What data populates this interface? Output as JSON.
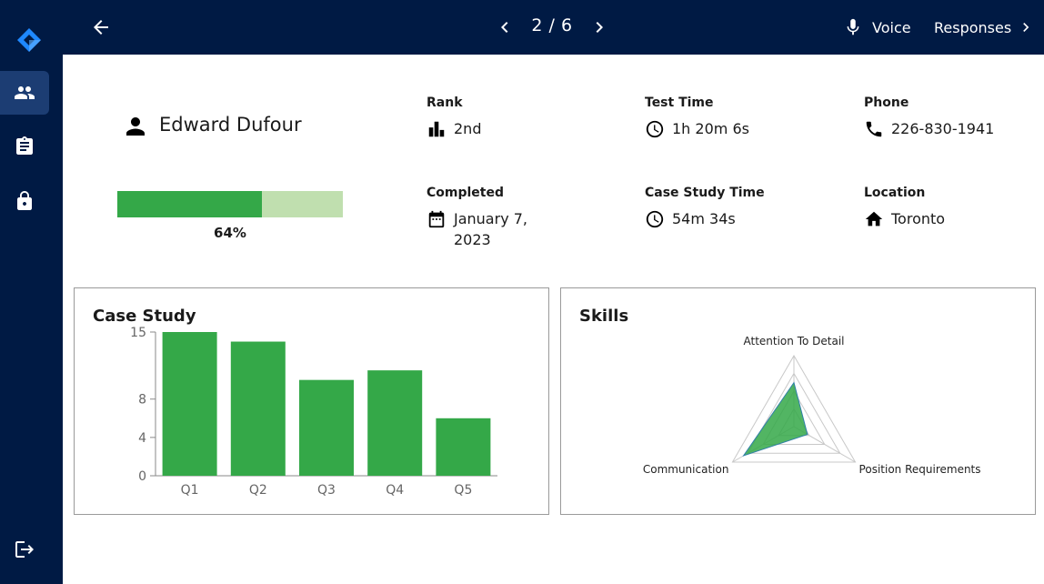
{
  "topbar": {
    "page_indicator": "2 / 6",
    "voice_label": "Voice",
    "responses_label": "Responses"
  },
  "profile": {
    "name": "Edward Dufour",
    "score_fraction": 0.64,
    "score_label": "64%"
  },
  "info": {
    "rank": {
      "label": "Rank",
      "value": "2nd",
      "icon": "bar-chart-icon"
    },
    "test_time": {
      "label": "Test Time",
      "value": "1h 20m 6s",
      "icon": "clock-icon"
    },
    "phone": {
      "label": "Phone",
      "value": "226-830-1941",
      "icon": "phone-icon"
    },
    "completed": {
      "label": "Completed",
      "value": "January 7, 2023",
      "icon": "calendar-icon"
    },
    "case_study_time": {
      "label": "Case Study Time",
      "value": "54m 34s",
      "icon": "clock-icon"
    },
    "location": {
      "label": "Location",
      "value": "Toronto",
      "icon": "home-icon"
    }
  },
  "colors": {
    "nav": "#001a44",
    "nav_active": "#1c3d73",
    "accent_green": "#34a848",
    "progress_track": "#c0dfaf"
  },
  "sidebar": {
    "items": [
      "people-icon",
      "clipboard-icon",
      "lock-icon"
    ],
    "bottom": "logout-icon"
  },
  "chart_data": [
    {
      "type": "bar",
      "title": "Case Study",
      "categories": [
        "Q1",
        "Q2",
        "Q3",
        "Q4",
        "Q5"
      ],
      "values": [
        15,
        14,
        10,
        11,
        6
      ],
      "yticks": [
        0,
        4,
        8,
        15
      ],
      "ylim": [
        0,
        15
      ],
      "color": "#34a848"
    },
    {
      "type": "radar",
      "title": "Skills",
      "axes": [
        "Attention To Detail",
        "Position Requirements",
        "Communication"
      ],
      "values": [
        0.62,
        0.22,
        0.82
      ],
      "color": "#34a848"
    }
  ]
}
